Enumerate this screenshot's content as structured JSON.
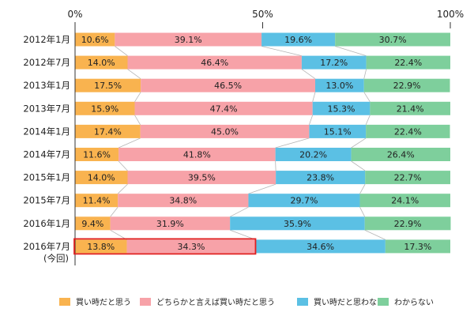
{
  "chart_data": {
    "type": "bar",
    "orientation": "horizontal",
    "stacked": true,
    "percent_scale": true,
    "title": "",
    "xlabel": "",
    "ylabel": "",
    "xlim": [
      0,
      100
    ],
    "x_ticks": [
      "0%",
      "50%",
      "100%"
    ],
    "grid": false,
    "legend_position": "bottom",
    "categories": [
      "2012年1月",
      "2012年7月",
      "2013年1月",
      "2013年7月",
      "2014年1月",
      "2014年7月",
      "2015年1月",
      "2015年7月",
      "2016年1月",
      "2016年7月"
    ],
    "category_notes": [
      "",
      "",
      "",
      "",
      "",
      "",
      "",
      "",
      "",
      "(今回)"
    ],
    "highlight": {
      "category": "2016年7月",
      "series": [
        "買い時だと思う",
        "どちらかと言えば買い時だと思う"
      ],
      "color": "#e02020"
    },
    "series": [
      {
        "name": "買い時だと思う",
        "color": "#f9b34f",
        "values": [
          10.6,
          14.0,
          17.5,
          15.9,
          17.4,
          11.6,
          14.0,
          11.4,
          9.4,
          13.8
        ],
        "labels": [
          "10.6%",
          "14.0%",
          "17.5%",
          "15.9%",
          "17.4%",
          "11.6%",
          "14.0%",
          "11.4%",
          "9.4%",
          "13.8%"
        ]
      },
      {
        "name": "どちらかと言えば買い時だと思う",
        "color": "#f7a2a8",
        "values": [
          39.1,
          46.4,
          46.5,
          47.4,
          45.0,
          41.8,
          39.5,
          34.8,
          31.9,
          34.3
        ],
        "labels": [
          "39.1%",
          "46.4%",
          "46.5%",
          "47.4%",
          "45.0%",
          "41.8%",
          "39.5%",
          "34.8%",
          "31.9%",
          "34.3%"
        ]
      },
      {
        "name": "買い時だと思わない",
        "color": "#5bc0e4",
        "values": [
          19.6,
          17.2,
          13.0,
          15.3,
          15.1,
          20.2,
          23.8,
          29.7,
          35.9,
          34.6
        ],
        "labels": [
          "19.6%",
          "17.2%",
          "13.0%",
          "15.3%",
          "15.1%",
          "20.2%",
          "23.8%",
          "29.7%",
          "35.9%",
          "34.6%"
        ]
      },
      {
        "name": "わからない",
        "color": "#7ecf9c",
        "values": [
          30.7,
          22.4,
          22.9,
          21.4,
          22.4,
          26.4,
          22.7,
          24.1,
          22.9,
          17.3
        ],
        "labels": [
          "30.7%",
          "22.4%",
          "22.9%",
          "21.4%",
          "22.4%",
          "26.4%",
          "22.7%",
          "24.1%",
          "22.9%",
          "17.3%"
        ]
      }
    ]
  }
}
